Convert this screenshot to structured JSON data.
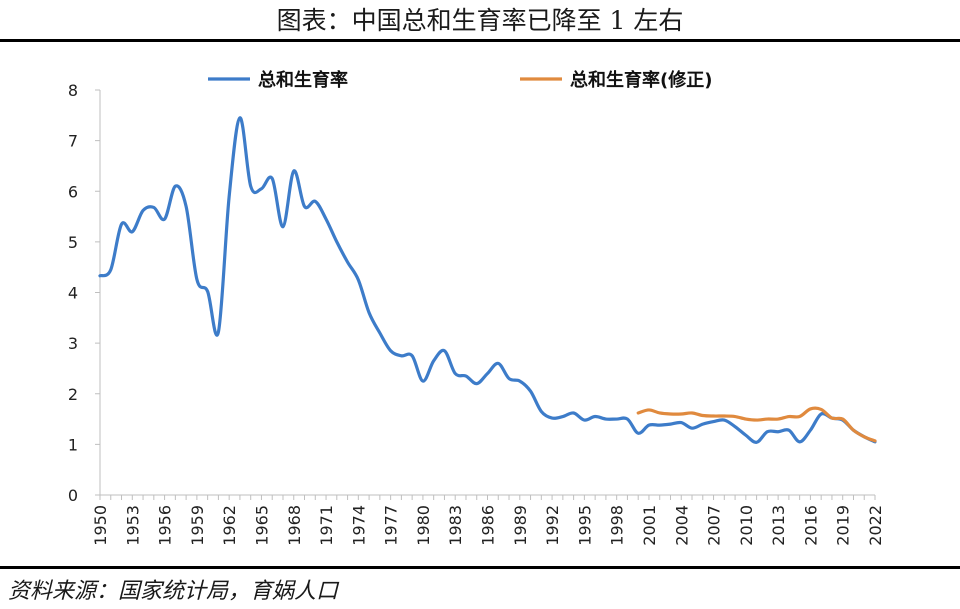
{
  "title": "图表：中国总和生育率已降至 1 左右",
  "source": "资料来源：国家统计局，育娲人口",
  "chart_data": {
    "type": "line",
    "title": "图表：中国总和生育率已降至 1 左右",
    "xlabel": "",
    "ylabel": "",
    "ylim": [
      0,
      8
    ],
    "yticks": [
      "0",
      "1",
      "2",
      "3",
      "4",
      "5",
      "6",
      "7",
      "8"
    ],
    "xticks": [
      "1950",
      "1953",
      "1956",
      "1959",
      "1962",
      "1965",
      "1968",
      "1971",
      "1974",
      "1977",
      "1980",
      "1983",
      "1986",
      "1989",
      "1992",
      "1995",
      "1998",
      "2001",
      "2004",
      "2007",
      "2010",
      "2013",
      "2016",
      "2019",
      "2022"
    ],
    "xlim": [
      1950,
      2022
    ],
    "grid": false,
    "legend_position": "top",
    "series": [
      {
        "name": "总和生育率",
        "color": "#3D7CC9",
        "x": [
          1950,
          1951,
          1952,
          1953,
          1954,
          1955,
          1956,
          1957,
          1958,
          1959,
          1960,
          1961,
          1962,
          1963,
          1964,
          1965,
          1966,
          1967,
          1968,
          1969,
          1970,
          1971,
          1972,
          1973,
          1974,
          1975,
          1976,
          1977,
          1978,
          1979,
          1980,
          1981,
          1982,
          1983,
          1984,
          1985,
          1986,
          1987,
          1988,
          1989,
          1990,
          1991,
          1992,
          1993,
          1994,
          1995,
          1996,
          1997,
          1998,
          1999,
          2000,
          2001,
          2002,
          2003,
          2004,
          2005,
          2006,
          2007,
          2008,
          2009,
          2010,
          2011,
          2012,
          2013,
          2014,
          2015,
          2016,
          2017,
          2018,
          2019,
          2020,
          2021,
          2022
        ],
        "values": [
          4.33,
          4.45,
          5.35,
          5.2,
          5.62,
          5.68,
          5.45,
          6.1,
          5.7,
          4.26,
          4.02,
          3.22,
          5.9,
          7.45,
          6.1,
          6.05,
          6.25,
          5.3,
          6.4,
          5.7,
          5.8,
          5.45,
          5.0,
          4.6,
          4.25,
          3.6,
          3.2,
          2.85,
          2.75,
          2.75,
          2.25,
          2.65,
          2.85,
          2.4,
          2.35,
          2.2,
          2.4,
          2.6,
          2.3,
          2.25,
          2.05,
          1.65,
          1.52,
          1.55,
          1.62,
          1.48,
          1.55,
          1.5,
          1.5,
          1.5,
          1.22,
          1.38,
          1.38,
          1.4,
          1.43,
          1.32,
          1.4,
          1.45,
          1.48,
          1.35,
          1.18,
          1.04,
          1.25,
          1.25,
          1.28,
          1.05,
          1.28,
          1.6,
          1.52,
          1.48,
          1.28,
          1.15,
          1.05
        ]
      },
      {
        "name": "总和生育率(修正)",
        "color": "#E08A3E",
        "x": [
          2000,
          2001,
          2002,
          2003,
          2004,
          2005,
          2006,
          2007,
          2008,
          2009,
          2010,
          2011,
          2012,
          2013,
          2014,
          2015,
          2016,
          2017,
          2018,
          2019,
          2020,
          2021,
          2022
        ],
        "values": [
          1.62,
          1.68,
          1.62,
          1.6,
          1.6,
          1.62,
          1.57,
          1.56,
          1.56,
          1.55,
          1.5,
          1.48,
          1.5,
          1.5,
          1.55,
          1.55,
          1.7,
          1.69,
          1.52,
          1.5,
          1.28,
          1.15,
          1.07
        ]
      }
    ]
  }
}
